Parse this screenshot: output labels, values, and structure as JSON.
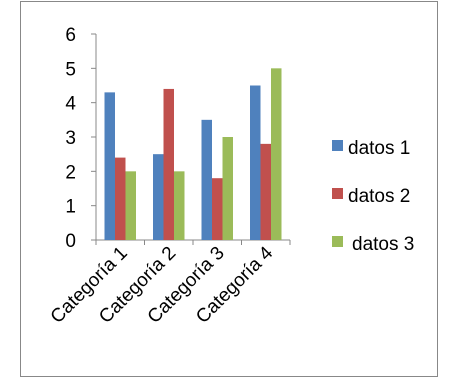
{
  "chart_data": {
    "type": "bar",
    "categories": [
      "Categoría 1",
      "Categoría 2",
      "Categoría 3",
      "Categoría 4"
    ],
    "series": [
      {
        "name": "datos 1",
        "values": [
          4.3,
          2.5,
          3.5,
          4.5
        ],
        "color": "#4f81bd"
      },
      {
        "name": "datos 2",
        "values": [
          2.4,
          4.4,
          1.8,
          2.8
        ],
        "color": "#c0504d"
      },
      {
        "name": "datos 3",
        "values": [
          2,
          2,
          3,
          5
        ],
        "color": "#9bbb59"
      }
    ],
    "ylim": [
      0,
      6
    ],
    "yticks": [
      "0",
      "1",
      "2",
      "3",
      "4",
      "5",
      "6"
    ],
    "grid": false,
    "legend": "right",
    "title": "",
    "xlabel": "",
    "ylabel": ""
  }
}
